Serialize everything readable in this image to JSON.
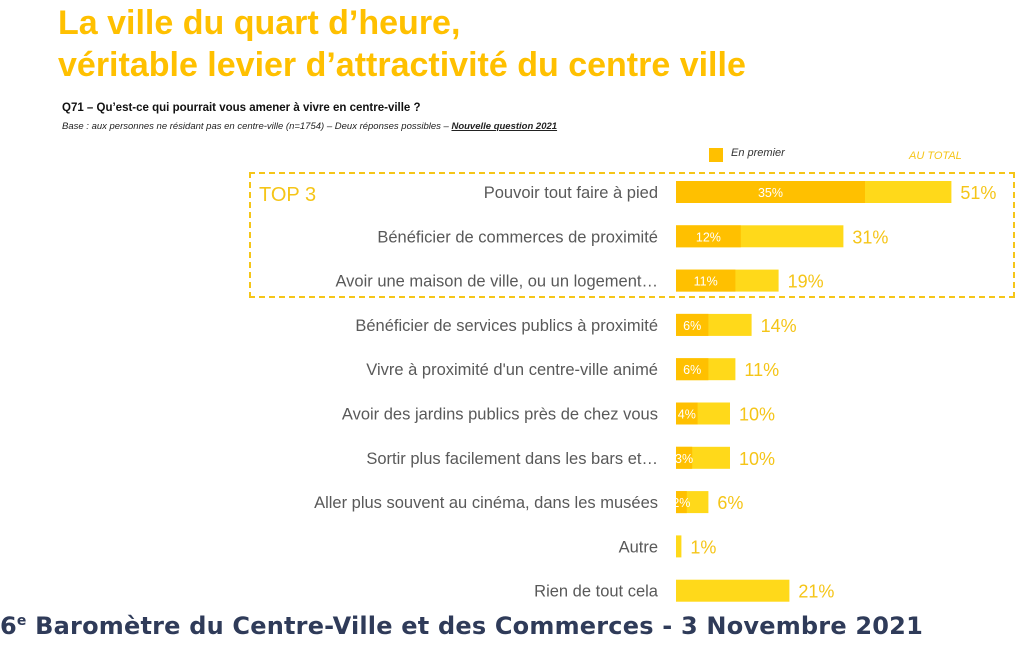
{
  "header": {
    "title_line1": "La ville du quart d’heure,",
    "title_line2": "véritable levier d’attractivité du centre ville",
    "question": "Q71 – Qu’est-ce qui pourrait vous amener à vivre en centre-ville ?",
    "base": "Base : aux personnes ne résidant pas en centre-ville (n=1754) – Deux réponses possibles –",
    "base_note": "Nouvelle question 2021"
  },
  "legend": {
    "first": "En premier",
    "total": "AU TOTAL"
  },
  "top3_label": "TOP 3",
  "colors": {
    "first": "#FFC000",
    "total": "#FFD91A",
    "label_text": "#595959",
    "total_text": "#F5C518",
    "footer": "#2F3B59"
  },
  "chart_data": {
    "type": "bar",
    "orientation": "horizontal",
    "categories": [
      "Pouvoir tout faire à pied",
      "Bénéficier de commerces de proximité",
      "Avoir une maison de ville, ou un logement…",
      "Bénéficier de services publics à proximité",
      "Vivre à proximité d'un centre-ville animé",
      "Avoir des jardins publics près de chez vous",
      "Sortir plus facilement dans les bars et…",
      "Aller plus souvent au cinéma, dans les musées",
      "Autre",
      "Rien de tout cela"
    ],
    "series": [
      {
        "name": "En premier",
        "values": [
          35,
          12,
          11,
          6,
          6,
          4,
          3,
          2,
          null,
          null
        ],
        "labels": [
          "35%",
          "12%",
          "11%",
          "6%",
          "6%",
          "4%",
          "3%",
          "2%",
          "",
          ""
        ]
      },
      {
        "name": "AU TOTAL",
        "values": [
          51,
          31,
          19,
          14,
          11,
          10,
          10,
          6,
          1,
          21
        ],
        "labels": [
          "51%",
          "31%",
          "19%",
          "14%",
          "11%",
          "10%",
          "10%",
          "6%",
          "1%",
          "21%"
        ]
      }
    ],
    "xlim": [
      0,
      100
    ],
    "unit": "%"
  },
  "footer": {
    "ordinal": "6",
    "ordinal_suffix": "e",
    "text": " Baromètre du Centre-Ville et des Commerces - 3 Novembre 2021"
  }
}
